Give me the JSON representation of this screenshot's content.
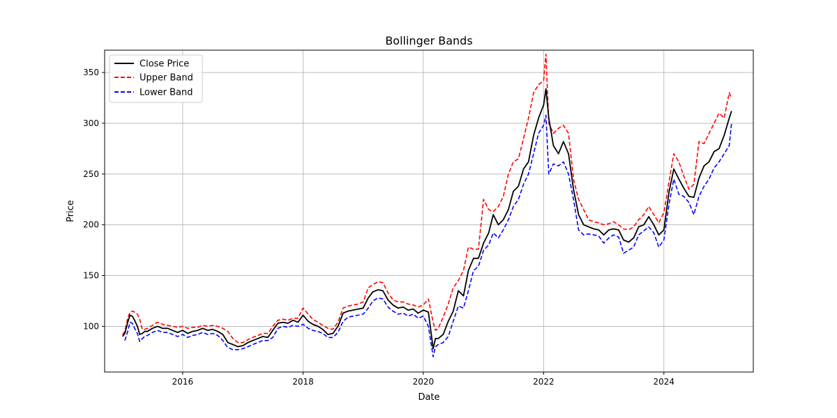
{
  "chart_data": {
    "type": "line",
    "title": "Bollinger Bands",
    "xlabel": "Date",
    "ylabel": "Price",
    "xlim": [
      "2014-09-14",
      "2025-06-27"
    ],
    "ylim": [
      55,
      372
    ],
    "x_ticks": [
      "2016",
      "2018",
      "2020",
      "2022",
      "2024"
    ],
    "y_ticks": [
      100,
      150,
      200,
      250,
      300,
      350
    ],
    "grid": true,
    "legend_position": "top-left",
    "series": [
      {
        "name": "Close Price",
        "color": "#000000",
        "style": "solid",
        "x": [
          "2015-01-01",
          "2015-01-15",
          "2015-02-01",
          "2015-02-15",
          "2015-03-01",
          "2015-03-15",
          "2015-04-01",
          "2015-04-15",
          "2015-05-01",
          "2015-05-15",
          "2015-06-01",
          "2015-07-01",
          "2015-08-01",
          "2015-09-01",
          "2015-10-01",
          "2015-11-01",
          "2015-12-01",
          "2016-01-01",
          "2016-02-01",
          "2016-03-01",
          "2016-04-01",
          "2016-05-01",
          "2016-06-01",
          "2016-07-01",
          "2016-08-01",
          "2016-09-01",
          "2016-10-01",
          "2016-11-01",
          "2016-12-01",
          "2017-01-01",
          "2017-02-01",
          "2017-03-01",
          "2017-04-01",
          "2017-05-01",
          "2017-06-01",
          "2017-07-01",
          "2017-08-01",
          "2017-09-01",
          "2017-10-01",
          "2017-11-01",
          "2017-12-01",
          "2018-01-01",
          "2018-02-01",
          "2018-03-01",
          "2018-04-01",
          "2018-05-01",
          "2018-06-01",
          "2018-07-01",
          "2018-08-01",
          "2018-09-01",
          "2018-10-01",
          "2018-11-01",
          "2018-12-01",
          "2019-01-01",
          "2019-02-01",
          "2019-03-01",
          "2019-04-01",
          "2019-05-01",
          "2019-06-01",
          "2019-07-01",
          "2019-08-01",
          "2019-09-01",
          "2019-10-01",
          "2019-11-01",
          "2019-12-01",
          "2020-01-01",
          "2020-02-01",
          "2020-03-01",
          "2020-03-15",
          "2020-04-01",
          "2020-05-01",
          "2020-06-01",
          "2020-07-01",
          "2020-08-01",
          "2020-09-01",
          "2020-10-01",
          "2020-11-01",
          "2020-12-01",
          "2021-01-01",
          "2021-02-01",
          "2021-03-01",
          "2021-04-01",
          "2021-05-01",
          "2021-06-01",
          "2021-07-01",
          "2021-08-01",
          "2021-09-01",
          "2021-10-01",
          "2021-11-01",
          "2021-12-01",
          "2022-01-01",
          "2022-01-15",
          "2022-02-01",
          "2022-03-01",
          "2022-04-01",
          "2022-05-01",
          "2022-06-01",
          "2022-07-01",
          "2022-08-01",
          "2022-09-01",
          "2022-10-01",
          "2022-11-01",
          "2022-12-01",
          "2023-01-01",
          "2023-02-01",
          "2023-03-01",
          "2023-04-01",
          "2023-05-01",
          "2023-06-01",
          "2023-07-01",
          "2023-08-01",
          "2023-09-01",
          "2023-10-01",
          "2023-11-01",
          "2023-12-01",
          "2024-01-01",
          "2024-02-01",
          "2024-03-01",
          "2024-04-01",
          "2024-05-01",
          "2024-06-01",
          "2024-07-01",
          "2024-08-01",
          "2024-09-01",
          "2024-10-01",
          "2024-11-01",
          "2024-12-01",
          "2025-01-01",
          "2025-02-01",
          "2025-02-15"
        ],
        "y": [
          90,
          93,
          104,
          111,
          110,
          106,
          100,
          92,
          93,
          95,
          95,
          98,
          100,
          98,
          98,
          96,
          94,
          96,
          93,
          95,
          96,
          98,
          96,
          97,
          95,
          92,
          84,
          82,
          80,
          81,
          84,
          86,
          88,
          90,
          89,
          96,
          103,
          104,
          103,
          106,
          104,
          111,
          105,
          102,
          100,
          97,
          92,
          93,
          100,
          113,
          115,
          116,
          117,
          118,
          128,
          134,
          136,
          135,
          126,
          121,
          118,
          119,
          116,
          117,
          113,
          116,
          114,
          78,
          88,
          88,
          92,
          105,
          115,
          135,
          130,
          155,
          167,
          167,
          182,
          192,
          210,
          200,
          205,
          215,
          233,
          238,
          255,
          262,
          288,
          305,
          318,
          334,
          305,
          278,
          270,
          282,
          270,
          235,
          210,
          200,
          198,
          196,
          195,
          190,
          195,
          196,
          195,
          185,
          183,
          187,
          198,
          200,
          208,
          200,
          190,
          195,
          232,
          255,
          245,
          236,
          228,
          227,
          246,
          258,
          262,
          272,
          275,
          288,
          305,
          312
        ]
      },
      {
        "name": "Upper Band",
        "color": "#ff0000",
        "style": "dashed",
        "x": [
          "2015-01-01",
          "2015-01-15",
          "2015-02-01",
          "2015-02-15",
          "2015-03-01",
          "2015-03-15",
          "2015-04-01",
          "2015-04-15",
          "2015-05-01",
          "2015-05-15",
          "2015-06-01",
          "2015-07-01",
          "2015-08-01",
          "2015-09-01",
          "2015-10-01",
          "2015-11-01",
          "2015-12-01",
          "2016-01-01",
          "2016-02-01",
          "2016-03-01",
          "2016-04-01",
          "2016-05-01",
          "2016-06-01",
          "2016-07-01",
          "2016-08-01",
          "2016-09-01",
          "2016-10-01",
          "2016-11-01",
          "2016-12-01",
          "2017-01-01",
          "2017-02-01",
          "2017-03-01",
          "2017-04-01",
          "2017-05-01",
          "2017-06-01",
          "2017-07-01",
          "2017-08-01",
          "2017-09-01",
          "2017-10-01",
          "2017-11-01",
          "2017-12-01",
          "2018-01-01",
          "2018-02-01",
          "2018-03-01",
          "2018-04-01",
          "2018-05-01",
          "2018-06-01",
          "2018-07-01",
          "2018-08-01",
          "2018-09-01",
          "2018-10-01",
          "2018-11-01",
          "2018-12-01",
          "2019-01-01",
          "2019-02-01",
          "2019-03-01",
          "2019-04-01",
          "2019-05-01",
          "2019-06-01",
          "2019-07-01",
          "2019-08-01",
          "2019-09-01",
          "2019-10-01",
          "2019-11-01",
          "2019-12-01",
          "2020-01-01",
          "2020-02-01",
          "2020-03-01",
          "2020-03-15",
          "2020-04-01",
          "2020-05-01",
          "2020-06-01",
          "2020-07-01",
          "2020-08-01",
          "2020-09-01",
          "2020-10-01",
          "2020-11-01",
          "2020-12-01",
          "2021-01-01",
          "2021-02-01",
          "2021-03-01",
          "2021-04-01",
          "2021-05-01",
          "2021-06-01",
          "2021-07-01",
          "2021-08-01",
          "2021-09-01",
          "2021-10-01",
          "2021-11-01",
          "2021-12-01",
          "2022-01-01",
          "2022-01-15",
          "2022-02-01",
          "2022-03-01",
          "2022-04-01",
          "2022-05-01",
          "2022-06-01",
          "2022-07-01",
          "2022-08-01",
          "2022-09-01",
          "2022-10-01",
          "2022-11-01",
          "2022-12-01",
          "2023-01-01",
          "2023-02-01",
          "2023-03-01",
          "2023-04-01",
          "2023-05-01",
          "2023-06-01",
          "2023-07-01",
          "2023-08-01",
          "2023-09-01",
          "2023-10-01",
          "2023-11-01",
          "2023-12-01",
          "2024-01-01",
          "2024-02-01",
          "2024-03-01",
          "2024-04-01",
          "2024-05-01",
          "2024-06-01",
          "2024-07-01",
          "2024-08-01",
          "2024-09-01",
          "2024-10-01",
          "2024-11-01",
          "2024-12-01",
          "2025-01-01",
          "2025-02-01",
          "2025-02-15"
        ],
        "y": [
          92,
          95,
          108,
          114,
          115,
          114,
          112,
          107,
          97,
          97,
          98,
          101,
          104,
          102,
          101,
          100,
          99,
          100,
          98,
          99,
          99,
          101,
          100,
          101,
          100,
          98,
          95,
          88,
          84,
          84,
          87,
          89,
          91,
          93,
          93,
          100,
          106,
          107,
          106,
          108,
          108,
          118,
          112,
          107,
          104,
          101,
          98,
          97,
          104,
          118,
          120,
          121,
          122,
          124,
          138,
          141,
          144,
          143,
          133,
          126,
          124,
          124,
          122,
          121,
          119,
          121,
          127,
          104,
          96,
          98,
          109,
          122,
          138,
          145,
          155,
          178,
          176,
          176,
          225,
          215,
          213,
          218,
          228,
          250,
          262,
          265,
          285,
          305,
          330,
          338,
          342,
          368,
          300,
          290,
          295,
          298,
          290,
          245,
          225,
          215,
          205,
          203,
          202,
          200,
          201,
          203,
          200,
          196,
          195,
          198,
          205,
          210,
          218,
          210,
          202,
          212,
          242,
          270,
          262,
          248,
          235,
          240,
          282,
          280,
          290,
          300,
          310,
          305,
          330,
          325
        ]
      },
      {
        "name": "Lower Band",
        "color": "#0000ff",
        "style": "dashed",
        "x": [
          "2015-01-15",
          "2015-02-01",
          "2015-02-15",
          "2015-03-01",
          "2015-03-15",
          "2015-04-01",
          "2015-04-15",
          "2015-05-01",
          "2015-05-15",
          "2015-06-01",
          "2015-07-01",
          "2015-08-01",
          "2015-09-01",
          "2015-10-01",
          "2015-11-01",
          "2015-12-01",
          "2016-01-01",
          "2016-02-01",
          "2016-03-01",
          "2016-04-01",
          "2016-05-01",
          "2016-06-01",
          "2016-07-01",
          "2016-08-01",
          "2016-09-01",
          "2016-10-01",
          "2016-11-01",
          "2016-12-01",
          "2017-01-01",
          "2017-02-01",
          "2017-03-01",
          "2017-04-01",
          "2017-05-01",
          "2017-06-01",
          "2017-07-01",
          "2017-08-01",
          "2017-09-01",
          "2017-10-01",
          "2017-11-01",
          "2017-12-01",
          "2018-01-01",
          "2018-02-01",
          "2018-03-01",
          "2018-04-01",
          "2018-05-01",
          "2018-06-01",
          "2018-07-01",
          "2018-08-01",
          "2018-09-01",
          "2018-10-01",
          "2018-11-01",
          "2018-12-01",
          "2019-01-01",
          "2019-02-01",
          "2019-03-01",
          "2019-04-01",
          "2019-05-01",
          "2019-06-01",
          "2019-07-01",
          "2019-08-01",
          "2019-09-01",
          "2019-10-01",
          "2019-11-01",
          "2019-12-01",
          "2020-01-01",
          "2020-02-01",
          "2020-03-01",
          "2020-03-15",
          "2020-04-01",
          "2020-05-01",
          "2020-06-01",
          "2020-07-01",
          "2020-08-01",
          "2020-09-01",
          "2020-10-01",
          "2020-11-01",
          "2020-12-01",
          "2021-01-01",
          "2021-02-01",
          "2021-03-01",
          "2021-04-01",
          "2021-05-01",
          "2021-06-01",
          "2021-07-01",
          "2021-08-01",
          "2021-09-01",
          "2021-10-01",
          "2021-11-01",
          "2021-12-01",
          "2022-01-01",
          "2022-01-15",
          "2022-02-01",
          "2022-03-01",
          "2022-04-01",
          "2022-05-01",
          "2022-06-01",
          "2022-07-01",
          "2022-08-01",
          "2022-09-01",
          "2022-10-01",
          "2022-11-01",
          "2022-12-01",
          "2023-01-01",
          "2023-02-01",
          "2023-03-01",
          "2023-04-01",
          "2023-05-01",
          "2023-06-01",
          "2023-07-01",
          "2023-08-01",
          "2023-09-01",
          "2023-10-01",
          "2023-11-01",
          "2023-12-01",
          "2024-01-01",
          "2024-02-01",
          "2024-03-01",
          "2024-04-01",
          "2024-05-01",
          "2024-06-01",
          "2024-07-01",
          "2024-08-01",
          "2024-09-01",
          "2024-10-01",
          "2024-11-01",
          "2024-12-01",
          "2025-01-01",
          "2025-02-01",
          "2025-02-15"
        ],
        "y": [
          86,
          95,
          104,
          103,
          98,
          93,
          85,
          88,
          90,
          91,
          94,
          96,
          94,
          94,
          92,
          90,
          92,
          89,
          91,
          92,
          94,
          92,
          93,
          91,
          86,
          79,
          77,
          77,
          78,
          80,
          82,
          84,
          86,
          86,
          89,
          98,
          100,
          99,
          101,
          100,
          102,
          98,
          96,
          95,
          93,
          89,
          89,
          94,
          105,
          109,
          110,
          111,
          112,
          118,
          125,
          128,
          127,
          119,
          115,
          112,
          113,
          110,
          112,
          108,
          110,
          100,
          70,
          80,
          82,
          84,
          90,
          105,
          120,
          118,
          135,
          155,
          159,
          175,
          180,
          192,
          187,
          195,
          205,
          218,
          225,
          240,
          250,
          270,
          290,
          298,
          308,
          250,
          260,
          258,
          262,
          250,
          225,
          195,
          190,
          191,
          190,
          189,
          182,
          187,
          190,
          188,
          172,
          175,
          178,
          190,
          194,
          198,
          192,
          178,
          185,
          220,
          245,
          230,
          228,
          222,
          210,
          228,
          238,
          245,
          256,
          262,
          270,
          278,
          300
        ]
      }
    ]
  }
}
